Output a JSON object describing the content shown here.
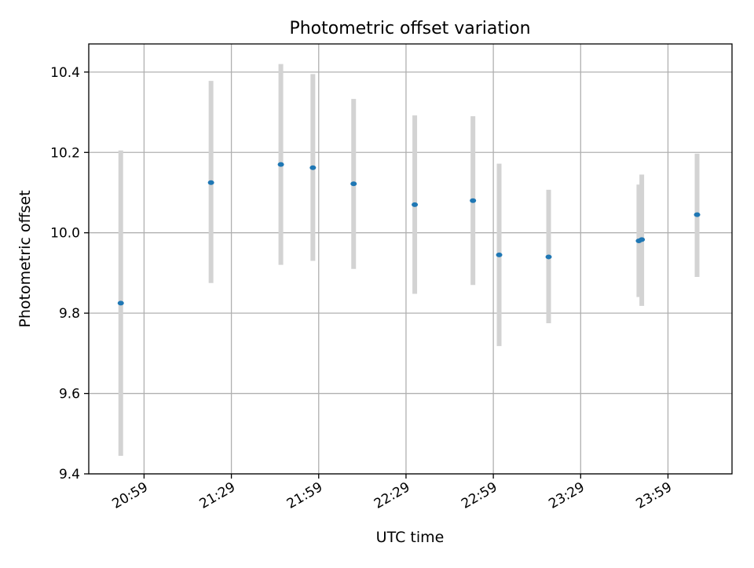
{
  "chart_data": {
    "type": "scatter",
    "title": "Photometric offset variation",
    "xlabel": "UTC time",
    "ylabel": "Photometric offset",
    "ylim": [
      9.4,
      10.47
    ],
    "xlim": [
      "20:40",
      "24:21"
    ],
    "grid": true,
    "x_tick_labels": [
      "20:59",
      "21:29",
      "21:59",
      "22:29",
      "22:59",
      "23:29",
      "23:59"
    ],
    "y_tick_labels": [
      "9.4",
      "9.6",
      "9.8",
      "10.0",
      "10.2",
      "10.4"
    ],
    "y_ticks": [
      9.4,
      9.6,
      9.8,
      10.0,
      10.2,
      10.4
    ],
    "points": [
      {
        "x": "20:51",
        "y": 9.825,
        "low": 9.445,
        "high": 10.205
      },
      {
        "x": "21:22",
        "y": 10.125,
        "low": 9.875,
        "high": 10.378
      },
      {
        "x": "21:46",
        "y": 10.17,
        "low": 9.92,
        "high": 10.42
      },
      {
        "x": "21:57",
        "y": 10.162,
        "low": 9.93,
        "high": 10.395
      },
      {
        "x": "22:11",
        "y": 10.122,
        "low": 9.91,
        "high": 10.333
      },
      {
        "x": "22:32",
        "y": 10.07,
        "low": 9.848,
        "high": 10.292
      },
      {
        "x": "22:52",
        "y": 10.08,
        "low": 9.87,
        "high": 10.29
      },
      {
        "x": "23:01",
        "y": 9.945,
        "low": 9.718,
        "high": 10.172
      },
      {
        "x": "23:18",
        "y": 9.94,
        "low": 9.775,
        "high": 10.107
      },
      {
        "x": "23:49",
        "y": 9.98,
        "low": 9.84,
        "high": 10.12
      },
      {
        "x": "23:50",
        "y": 9.983,
        "low": 9.818,
        "high": 10.145
      },
      {
        "x": "24:09",
        "y": 10.045,
        "low": 9.89,
        "high": 10.197
      }
    ],
    "colors": {
      "point": "#1f77b4",
      "errorbar": "#d3d3d3",
      "grid": "#b0b0b0",
      "axes": "#000000"
    }
  }
}
